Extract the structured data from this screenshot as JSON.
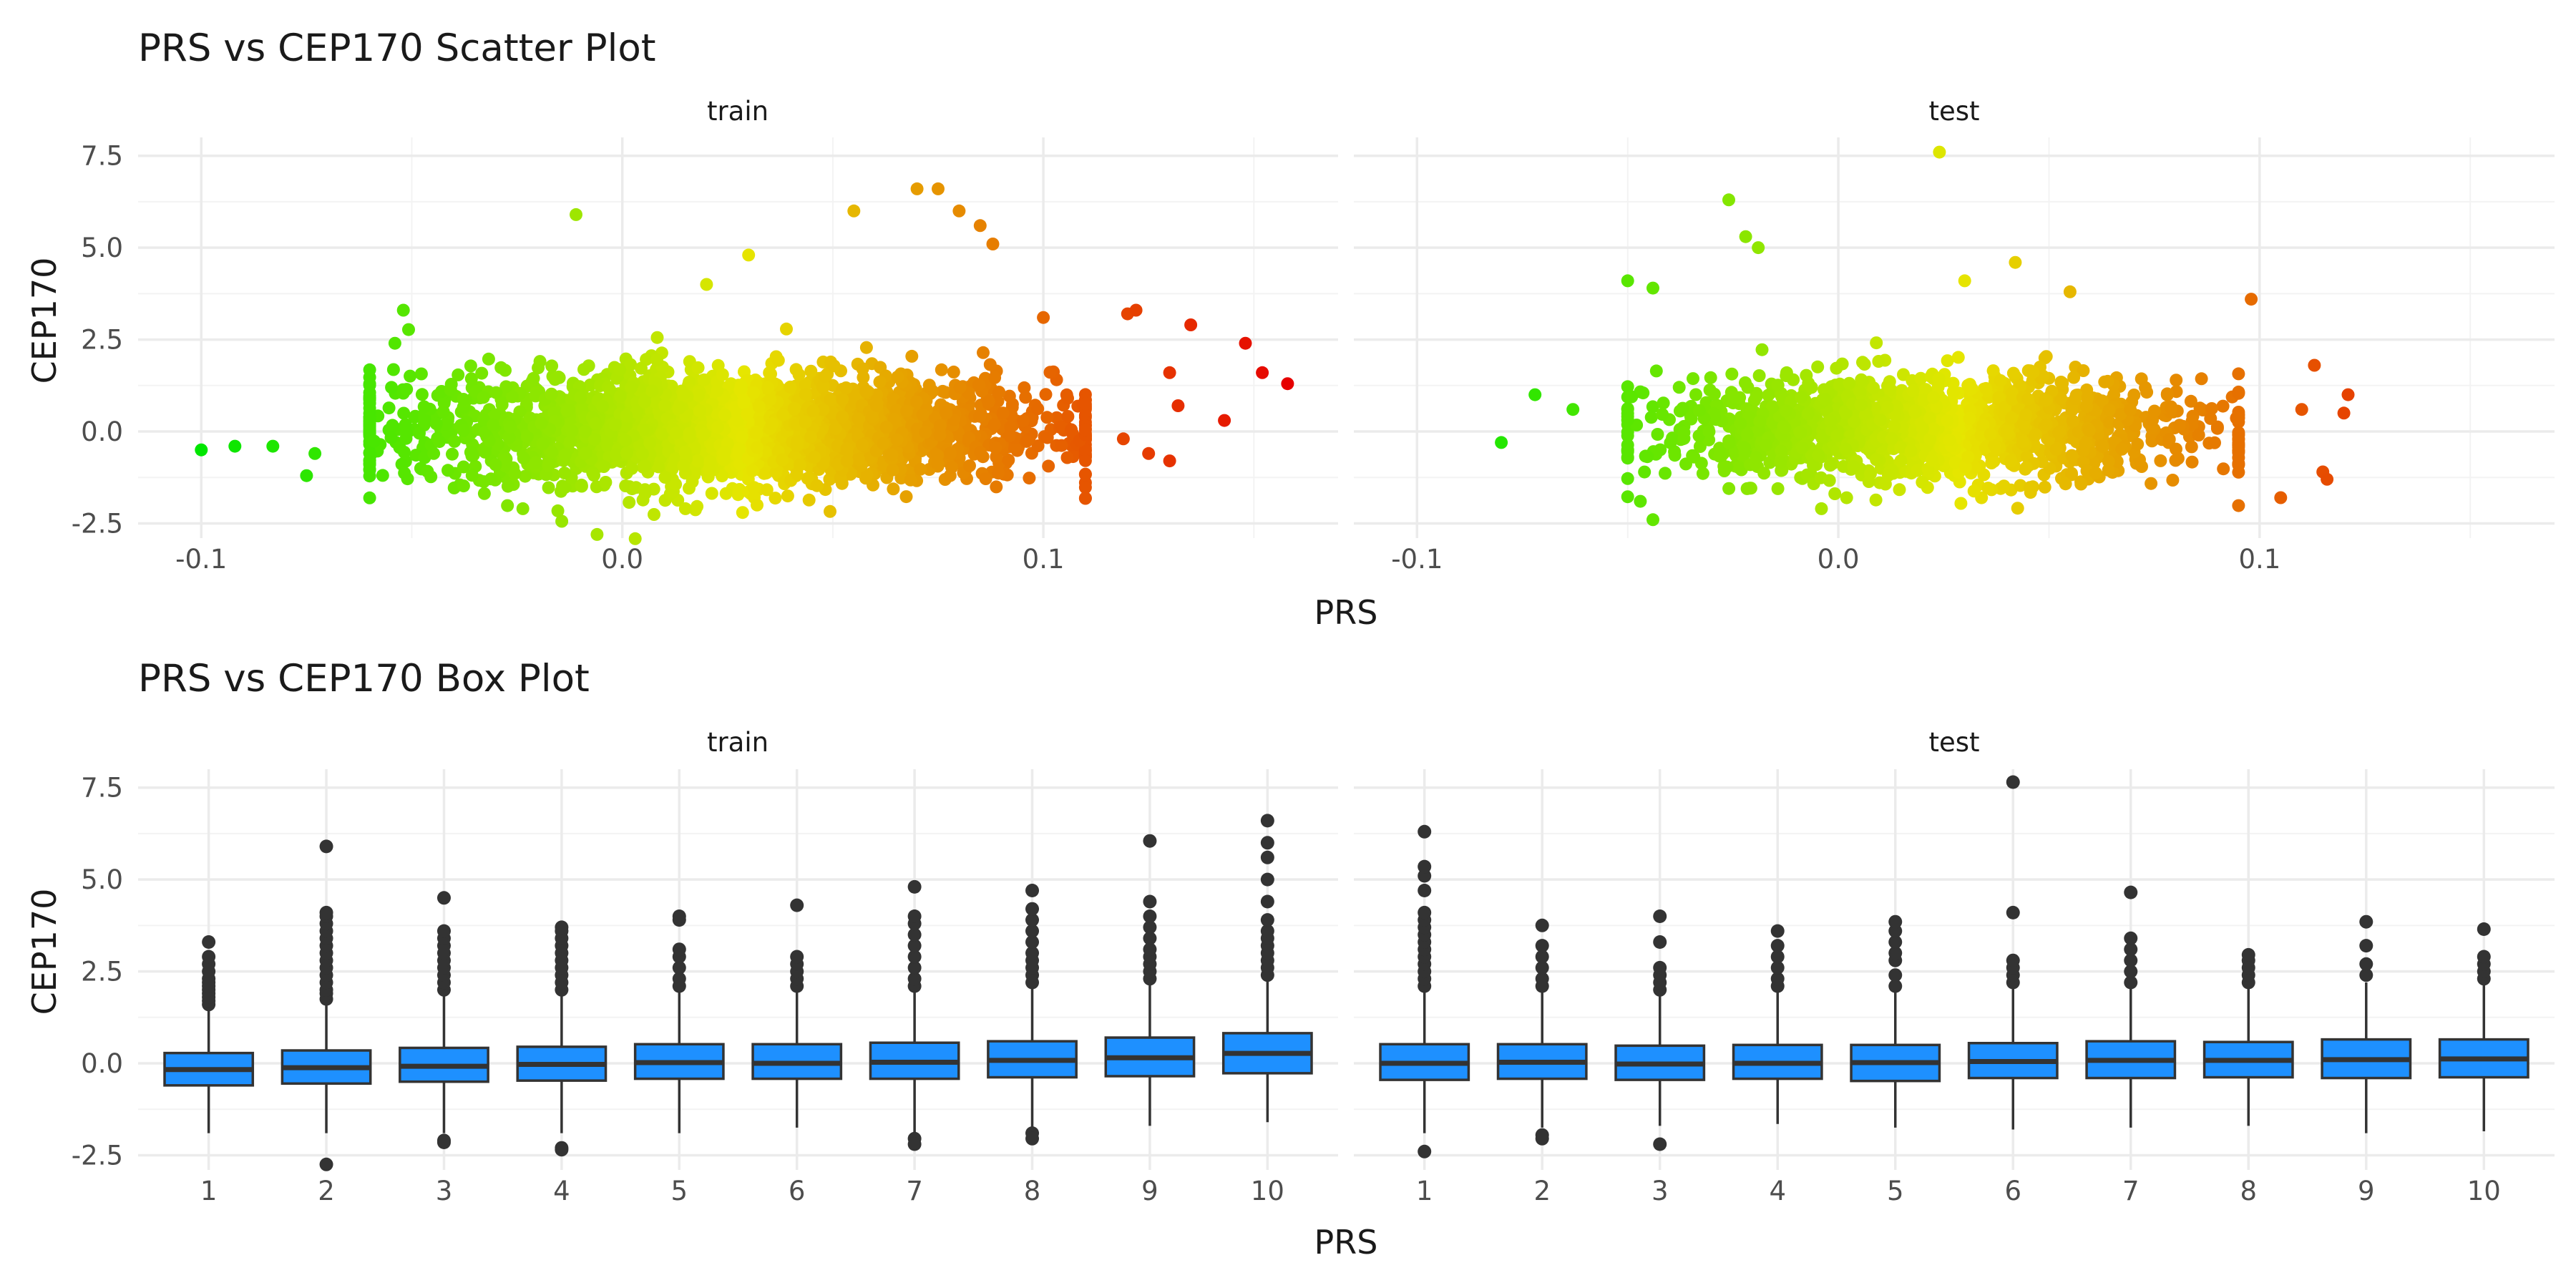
{
  "chart_data": [
    {
      "type": "scatter",
      "title": "PRS vs CEP170 Scatter Plot",
      "xlabel": "PRS",
      "ylabel": "CEP170",
      "facets": [
        "train",
        "test"
      ],
      "xlim": [
        -0.115,
        0.17
      ],
      "ylim": [
        -2.9,
        8.0
      ],
      "x_ticks": [
        -0.1,
        0.0,
        0.1
      ],
      "x_tick_labels": [
        "-0.1",
        "0.0",
        "0.1"
      ],
      "y_ticks": [
        -2.5,
        0.0,
        2.5,
        5.0,
        7.5
      ],
      "y_tick_labels": [
        "-2.5",
        "0.0",
        "2.5",
        "5.0",
        "7.5"
      ],
      "grid": true,
      "legend": "none",
      "color_gradient": [
        "#00ff00",
        "#ff0000"
      ],
      "series": [
        {
          "name": "train",
          "bulk": {
            "x_range": [
              -0.06,
              0.11
            ],
            "y_mean": 0.1,
            "y_sd": 0.75
          },
          "points": [
            [
              -0.1,
              -0.5
            ],
            [
              -0.092,
              -0.4
            ],
            [
              -0.083,
              -0.4
            ],
            [
              -0.075,
              -1.2
            ],
            [
              -0.073,
              -0.6
            ],
            [
              -0.052,
              3.3
            ],
            [
              -0.054,
              2.4
            ],
            [
              -0.011,
              5.9
            ],
            [
              0.02,
              4.0
            ],
            [
              0.03,
              4.8
            ],
            [
              0.055,
              6.0
            ],
            [
              0.07,
              6.6
            ],
            [
              0.075,
              6.6
            ],
            [
              0.08,
              6.0
            ],
            [
              0.085,
              5.6
            ],
            [
              0.088,
              5.1
            ],
            [
              0.015,
              -2.1
            ],
            [
              -0.006,
              -2.8
            ],
            [
              0.032,
              -2.0
            ],
            [
              0.1,
              3.1
            ],
            [
              0.12,
              3.2
            ],
            [
              0.122,
              3.3
            ],
            [
              0.13,
              1.6
            ],
            [
              0.132,
              0.7
            ],
            [
              0.135,
              2.9
            ],
            [
              0.143,
              0.3
            ],
            [
              0.148,
              2.4
            ],
            [
              0.152,
              1.6
            ],
            [
              0.158,
              1.3
            ],
            [
              0.13,
              -0.8
            ],
            [
              0.125,
              -0.6
            ],
            [
              0.119,
              -0.2
            ]
          ]
        },
        {
          "name": "test",
          "bulk": {
            "x_range": [
              -0.05,
              0.095
            ],
            "y_mean": 0.1,
            "y_sd": 0.7
          },
          "points": [
            [
              -0.08,
              -0.3
            ],
            [
              -0.072,
              1.0
            ],
            [
              -0.063,
              0.6
            ],
            [
              -0.05,
              4.1
            ],
            [
              -0.044,
              3.9
            ],
            [
              -0.047,
              -1.9
            ],
            [
              -0.044,
              -2.4
            ],
            [
              -0.026,
              6.3
            ],
            [
              -0.022,
              5.3
            ],
            [
              -0.019,
              5.0
            ],
            [
              0.024,
              7.6
            ],
            [
              0.03,
              4.1
            ],
            [
              0.042,
              4.6
            ],
            [
              0.055,
              3.8
            ],
            [
              -0.004,
              -2.1
            ],
            [
              0.098,
              3.6
            ],
            [
              0.105,
              -1.8
            ],
            [
              0.11,
              0.6
            ],
            [
              0.113,
              1.8
            ],
            [
              0.115,
              -1.1
            ],
            [
              0.12,
              0.5
            ],
            [
              0.121,
              1.0
            ],
            [
              0.116,
              -1.3
            ]
          ]
        }
      ]
    },
    {
      "type": "box",
      "title": "PRS vs CEP170 Box Plot",
      "xlabel": "PRS",
      "ylabel": "CEP170",
      "facets": [
        "train",
        "test"
      ],
      "categories": [
        "1",
        "2",
        "3",
        "4",
        "5",
        "6",
        "7",
        "8",
        "9",
        "10"
      ],
      "ylim": [
        -2.9,
        8.0
      ],
      "y_ticks": [
        -2.5,
        0.0,
        2.5,
        5.0,
        7.5
      ],
      "y_tick_labels": [
        "-2.5",
        "0.0",
        "2.5",
        "5.0",
        "7.5"
      ],
      "box_color": "#1e90ff",
      "grid": true,
      "legend": "none",
      "series": [
        {
          "name": "train",
          "boxes": [
            {
              "q1": -0.6,
              "median": -0.17,
              "q3": 0.28,
              "lo": -1.9,
              "hi": 1.55,
              "outliers": [
                1.6,
                1.7,
                1.8,
                1.9,
                2.0,
                2.1,
                2.2,
                2.3,
                2.5,
                2.7,
                2.9,
                3.3
              ]
            },
            {
              "q1": -0.55,
              "median": -0.12,
              "q3": 0.35,
              "lo": -1.9,
              "hi": 1.7,
              "outliers": [
                1.75,
                1.9,
                2.0,
                2.2,
                2.4,
                2.6,
                2.8,
                3.0,
                3.2,
                3.4,
                3.6,
                3.8,
                4.0,
                4.1,
                5.9,
                -2.75
              ]
            },
            {
              "q1": -0.5,
              "median": -0.08,
              "q3": 0.42,
              "lo": -1.9,
              "hi": 1.9,
              "outliers": [
                2.0,
                2.2,
                2.4,
                2.6,
                2.8,
                3.0,
                3.2,
                3.4,
                3.6,
                4.5,
                -2.1,
                -2.15
              ]
            },
            {
              "q1": -0.47,
              "median": -0.03,
              "q3": 0.45,
              "lo": -1.9,
              "hi": 1.9,
              "outliers": [
                2.0,
                2.2,
                2.4,
                2.6,
                2.8,
                3.0,
                3.2,
                3.4,
                3.6,
                3.7,
                -2.3,
                -2.35
              ]
            },
            {
              "q1": -0.42,
              "median": 0.02,
              "q3": 0.52,
              "lo": -1.9,
              "hi": 2.0,
              "outliers": [
                2.1,
                2.3,
                2.6,
                2.9,
                3.1,
                3.9,
                4.0
              ]
            },
            {
              "q1": -0.42,
              "median": 0.0,
              "q3": 0.52,
              "lo": -1.75,
              "hi": 2.0,
              "outliers": [
                2.1,
                2.3,
                2.5,
                2.7,
                2.9,
                4.3
              ]
            },
            {
              "q1": -0.42,
              "median": 0.03,
              "q3": 0.56,
              "lo": -1.9,
              "hi": 2.0,
              "outliers": [
                2.1,
                2.3,
                2.6,
                2.9,
                3.2,
                3.5,
                3.8,
                4.0,
                4.8,
                -2.05,
                -2.2
              ]
            },
            {
              "q1": -0.38,
              "median": 0.08,
              "q3": 0.6,
              "lo": -1.8,
              "hi": 2.1,
              "outliers": [
                2.2,
                2.4,
                2.6,
                2.8,
                3.0,
                3.3,
                3.6,
                3.9,
                4.2,
                4.7,
                -1.9,
                -2.05
              ]
            },
            {
              "q1": -0.35,
              "median": 0.15,
              "q3": 0.7,
              "lo": -1.7,
              "hi": 2.2,
              "outliers": [
                2.3,
                2.5,
                2.7,
                2.9,
                3.1,
                3.4,
                3.7,
                4.0,
                4.4,
                6.05
              ]
            },
            {
              "q1": -0.27,
              "median": 0.27,
              "q3": 0.82,
              "lo": -1.6,
              "hi": 2.3,
              "outliers": [
                2.4,
                2.6,
                2.8,
                3.0,
                3.2,
                3.4,
                3.6,
                3.9,
                4.4,
                5.0,
                5.6,
                6.0,
                6.6
              ]
            }
          ]
        },
        {
          "name": "test",
          "boxes": [
            {
              "q1": -0.45,
              "median": 0.0,
              "q3": 0.52,
              "lo": -1.9,
              "hi": 2.0,
              "outliers": [
                2.1,
                2.3,
                2.5,
                2.7,
                2.9,
                3.1,
                3.3,
                3.5,
                3.7,
                3.9,
                4.1,
                4.7,
                5.1,
                5.35,
                6.3,
                -2.4
              ]
            },
            {
              "q1": -0.42,
              "median": 0.03,
              "q3": 0.52,
              "lo": -1.75,
              "hi": 2.0,
              "outliers": [
                2.1,
                2.3,
                2.6,
                2.9,
                3.2,
                3.75,
                -1.95,
                -2.05
              ]
            },
            {
              "q1": -0.45,
              "median": -0.02,
              "q3": 0.48,
              "lo": -1.7,
              "hi": 1.95,
              "outliers": [
                2.0,
                2.2,
                2.4,
                2.6,
                3.3,
                4.0,
                -2.2
              ]
            },
            {
              "q1": -0.42,
              "median": 0.0,
              "q3": 0.5,
              "lo": -1.65,
              "hi": 2.0,
              "outliers": [
                2.1,
                2.3,
                2.6,
                2.9,
                3.2,
                3.6
              ]
            },
            {
              "q1": -0.48,
              "median": 0.02,
              "q3": 0.5,
              "lo": -1.75,
              "hi": 2.0,
              "outliers": [
                2.1,
                2.4,
                2.8,
                3.0,
                3.3,
                3.6,
                3.85
              ]
            },
            {
              "q1": -0.4,
              "median": 0.05,
              "q3": 0.55,
              "lo": -1.8,
              "hi": 2.1,
              "outliers": [
                2.2,
                2.4,
                2.6,
                2.8,
                4.1,
                7.65
              ]
            },
            {
              "q1": -0.4,
              "median": 0.08,
              "q3": 0.6,
              "lo": -1.75,
              "hi": 2.1,
              "outliers": [
                2.2,
                2.5,
                2.8,
                3.1,
                3.4,
                4.65
              ]
            },
            {
              "q1": -0.38,
              "median": 0.08,
              "q3": 0.58,
              "lo": -1.7,
              "hi": 2.1,
              "outliers": [
                2.2,
                2.4,
                2.6,
                2.8,
                2.95
              ]
            },
            {
              "q1": -0.4,
              "median": 0.1,
              "q3": 0.65,
              "lo": -1.9,
              "hi": 2.2,
              "outliers": [
                2.4,
                2.7,
                3.2,
                3.85
              ]
            },
            {
              "q1": -0.38,
              "median": 0.12,
              "q3": 0.65,
              "lo": -1.85,
              "hi": 2.2,
              "outliers": [
                2.3,
                2.5,
                2.7,
                2.9,
                3.65
              ]
            }
          ]
        }
      ]
    }
  ]
}
